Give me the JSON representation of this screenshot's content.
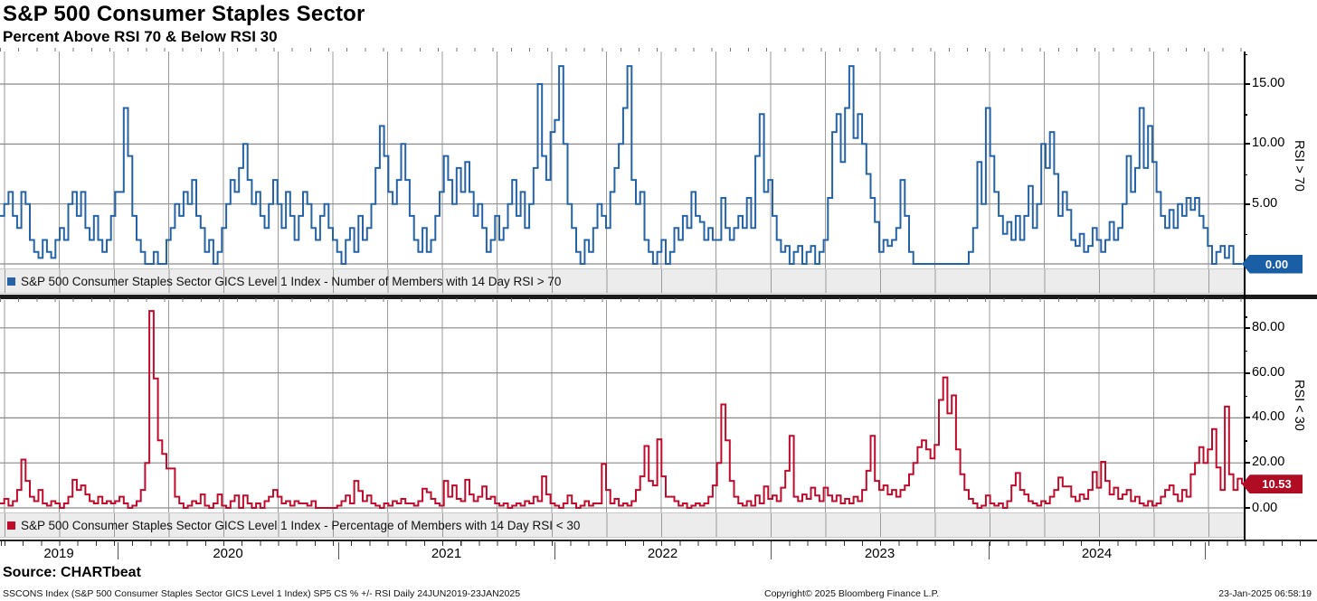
{
  "header": {
    "title": "S&P 500 Consumer Staples Sector",
    "subtitle": "Percent Above RSI 70 & Below RSI 30"
  },
  "colors": {
    "blue_line": "#2563a6",
    "blue_badge": "#1a5ea6",
    "red_line": "#c00c2c",
    "red_badge": "#b00c24",
    "grid": "#9a9a9a",
    "legend_bg": "#ececec",
    "divider": "#1c1c1c"
  },
  "x_axis": {
    "year_labels": [
      "2019",
      "2020",
      "2021",
      "2022",
      "2023",
      "2024"
    ],
    "range": "24JUN2019 - 23JAN2025"
  },
  "chart_data": [
    {
      "type": "line",
      "panel": "top",
      "legend": "S&P 500 Consumer Staples Sector GICS Level 1 Index - Number of Members with 14 Day RSI > 70",
      "axis_label": "RSI > 70",
      "ylim": [
        0,
        18.1
      ],
      "yticks": [
        0,
        5,
        10,
        15
      ],
      "ytick_labels": [
        "5.00",
        "10.00",
        "15.00"
      ],
      "last_value": 0.0,
      "last_value_label": "0.00",
      "x_start": "2019-06-24",
      "x_end": "2025-01-23",
      "sampling": "weekly resample of daily series",
      "values": [
        4,
        5,
        6,
        4,
        3,
        6,
        5,
        2,
        1,
        0.5,
        2,
        1,
        0.5,
        2,
        3,
        2,
        5,
        6,
        4,
        6,
        3,
        2,
        4,
        2,
        1,
        2,
        4,
        6,
        6,
        13,
        9,
        4,
        2,
        1,
        0,
        0,
        1,
        0,
        0,
        2,
        3,
        5,
        4,
        6,
        5,
        7,
        4,
        3,
        1,
        2,
        0,
        1,
        3,
        5,
        7,
        6,
        8,
        10,
        7,
        5,
        6,
        4,
        3,
        5,
        7,
        5,
        3,
        6,
        4,
        2,
        4,
        6,
        5,
        3,
        2,
        4,
        5,
        3,
        2,
        1,
        0,
        2,
        3,
        1,
        4,
        2,
        3,
        5,
        8,
        11.5,
        9,
        6,
        5,
        7,
        10,
        7,
        4,
        2,
        1,
        3,
        1,
        2,
        4,
        6,
        9,
        7,
        5,
        8,
        6,
        8.5,
        6,
        4,
        5,
        3,
        1,
        2,
        4,
        2,
        3,
        5,
        7,
        4,
        6,
        3,
        5,
        8,
        15,
        9,
        7,
        11,
        12,
        16.5,
        10,
        5,
        3,
        1,
        0,
        2,
        1,
        3,
        5,
        4,
        3,
        6,
        8,
        10,
        13,
        16.5,
        7,
        5,
        6,
        2,
        1,
        0,
        1,
        2,
        0,
        1,
        3,
        2,
        4,
        3,
        6,
        4,
        3.5,
        2,
        3,
        2,
        2,
        5.5,
        3,
        2,
        3,
        4,
        3,
        5.5,
        3,
        9,
        12.5,
        6,
        7,
        4,
        2,
        1,
        1.5,
        0,
        1,
        1.5,
        0,
        1,
        1.5,
        0,
        1,
        2,
        5.5,
        11,
        12.5,
        8.5,
        13,
        16.5,
        10.5,
        12.5,
        10,
        7.5,
        5.5,
        3.5,
        1,
        2,
        1.5,
        2,
        3,
        7,
        4,
        1,
        0,
        0,
        0,
        0,
        0,
        0,
        0,
        0,
        0,
        0,
        0,
        0,
        0,
        1,
        3,
        8.5,
        5,
        13,
        9,
        6,
        4,
        2.5,
        3.5,
        2,
        4,
        2,
        4,
        6.5,
        3,
        5,
        10,
        8,
        11,
        7.5,
        4,
        6,
        4.5,
        2,
        1.5,
        2.5,
        1,
        1.5,
        3,
        2,
        1,
        2,
        3.5,
        2,
        3,
        5,
        9,
        6,
        8,
        13,
        8,
        11.5,
        8.5,
        6,
        4,
        3,
        4.5,
        3,
        5,
        4,
        5.5,
        4.5,
        5.5,
        4,
        3,
        1.5,
        0,
        1,
        1.5,
        0.5,
        1.5,
        0,
        0,
        0
      ]
    },
    {
      "type": "line",
      "panel": "bottom",
      "legend": "S&P 500 Consumer Staples Sector GICS Level 1 Index - Percentage of Members with 14 Day RSI < 30",
      "axis_label": "RSI < 30",
      "ylim": [
        0,
        92
      ],
      "yticks": [
        0,
        20,
        40,
        60,
        80
      ],
      "ytick_labels": [
        "0.00",
        "20.00",
        "40.00",
        "60.00",
        "80.00"
      ],
      "zero_label": "0.00",
      "last_value": 10.53,
      "last_value_label": "10.53",
      "x_start": "2019-06-24",
      "x_end": "2025-01-23",
      "sampling": "weekly resample of daily series",
      "values": [
        2,
        4,
        1,
        3,
        8,
        21.5,
        12,
        5,
        3,
        8,
        2,
        1,
        3,
        2,
        0,
        2,
        5,
        12.5,
        8,
        10,
        6,
        3,
        2,
        5,
        2,
        3,
        2,
        3,
        5,
        2,
        0,
        1,
        3,
        8,
        20,
        87.5,
        57.5,
        30,
        24,
        17.5,
        17.5,
        5,
        2,
        0,
        1,
        3,
        2,
        6,
        1,
        0,
        2,
        6,
        1,
        0,
        3,
        5.5,
        0,
        5.5,
        2,
        0,
        2,
        0,
        3,
        5,
        8,
        5,
        2,
        3,
        1,
        3,
        2,
        2,
        1,
        3,
        0,
        0,
        0,
        0,
        0,
        1,
        3,
        5.5,
        2,
        12,
        7.5,
        3,
        5.5,
        2,
        1,
        0,
        2,
        1,
        3,
        2,
        4,
        2,
        2,
        1,
        3,
        8.5,
        7,
        4,
        2,
        1,
        12,
        5,
        10,
        4,
        3,
        12.5,
        6,
        3,
        5,
        9.5,
        4,
        5,
        2,
        1,
        2,
        0,
        1,
        2,
        1,
        3,
        2,
        5,
        3,
        14,
        6,
        2,
        1,
        0,
        2,
        5.5,
        2,
        0,
        1,
        3,
        1,
        2,
        2,
        19.5,
        8,
        2,
        4,
        1,
        2,
        1,
        3,
        8,
        14,
        27.5,
        12,
        10,
        30.5,
        14,
        5,
        5,
        3,
        1,
        2,
        0,
        1,
        2,
        1,
        2,
        5,
        10,
        20,
        46,
        30,
        12,
        5,
        2,
        1,
        3,
        1,
        5.5,
        2,
        9.5,
        4,
        5.5,
        3,
        9,
        16.5,
        32,
        5,
        3,
        6,
        4,
        9,
        5.5,
        3,
        9,
        5.5,
        3,
        5.5,
        2,
        4,
        2,
        5,
        3,
        8,
        16.5,
        32,
        12,
        8,
        10,
        6,
        8,
        5,
        8,
        10,
        15,
        20,
        27,
        30,
        26,
        22,
        28,
        48,
        58,
        42,
        50,
        26,
        15,
        8,
        4,
        2,
        0,
        1,
        5.5,
        2,
        1,
        2,
        0,
        3,
        10,
        15.5,
        8,
        6,
        3,
        2,
        1,
        3,
        2,
        5,
        8,
        13.5,
        9.5,
        9.5,
        5,
        3,
        6,
        4,
        8,
        16,
        9,
        20.5,
        12,
        6,
        9,
        4,
        6,
        8,
        3,
        5,
        2,
        1,
        3,
        1,
        2,
        5,
        8,
        10,
        6,
        3,
        8,
        5,
        15,
        20,
        27,
        20,
        26,
        35,
        18,
        8,
        45,
        15,
        8,
        13,
        10.53
      ]
    }
  ],
  "footer": {
    "source": "Source: CHARTbeat",
    "note": "SSCONS Index (S&P 500 Consumer Staples Sector GICS Level 1 Index) SP5 CS % +/- RSI  Daily 24JUN2019-23JAN2025",
    "copyright": "Copyright© 2025 Bloomberg Finance L.P.",
    "timestamp": "23-Jan-2025 06:58:19"
  }
}
